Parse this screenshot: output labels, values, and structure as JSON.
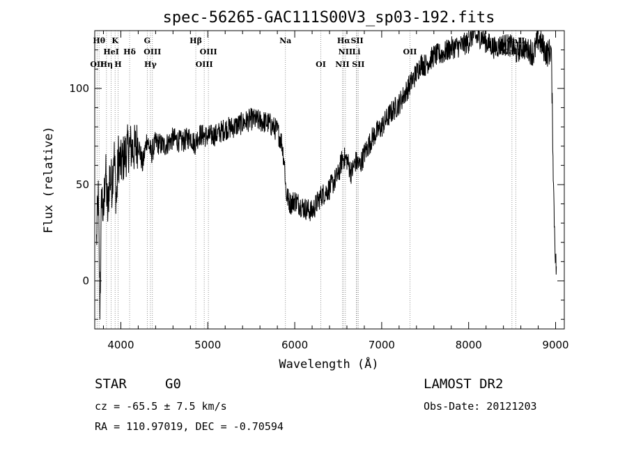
{
  "chart_data": {
    "type": "line",
    "title": "spec-56265-GAC111S00V3_sp03-192.fits",
    "xlabel": "Wavelength (Å)",
    "ylabel": "Flux (relative)",
    "xlim": [
      3700,
      9100
    ],
    "ylim": [
      -25,
      130
    ],
    "xticks": [
      4000,
      5000,
      6000,
      7000,
      8000,
      9000
    ],
    "yticks": [
      0,
      50,
      100
    ],
    "grid": false,
    "series": [
      {
        "color": "#000000",
        "x": [
          3720,
          3740,
          3760,
          3780,
          3800,
          3820,
          3850,
          3870,
          3900,
          3920,
          3950,
          3970,
          4000,
          4050,
          4100,
          4150,
          4200,
          4250,
          4300,
          4350,
          4400,
          4500,
          4600,
          4700,
          4800,
          4850,
          4900,
          5000,
          5100,
          5200,
          5300,
          5400,
          5500,
          5600,
          5700,
          5800,
          5850,
          5880,
          5890,
          5900,
          5950,
          6000,
          6100,
          6200,
          6250,
          6300,
          6400,
          6500,
          6550,
          6600,
          6650,
          6700,
          6750,
          6800,
          6900,
          7000,
          7100,
          7200,
          7300,
          7400,
          7450,
          7500,
          7600,
          7700,
          7800,
          7900,
          8000,
          8050,
          8100,
          8150,
          8200,
          8300,
          8400,
          8500,
          8550,
          8600,
          8700,
          8750,
          8800,
          8850,
          8900,
          8950,
          8980,
          9000,
          9010
        ],
        "y": [
          20,
          45,
          -15,
          48,
          30,
          60,
          35,
          55,
          50,
          68,
          40,
          65,
          60,
          66,
          70,
          68,
          72,
          60,
          74,
          66,
          72,
          70,
          74,
          72,
          75,
          71,
          76,
          75,
          76,
          79,
          80,
          82,
          84,
          83,
          82,
          78,
          72,
          62,
          55,
          45,
          40,
          42,
          38,
          36,
          40,
          44,
          48,
          55,
          64,
          63,
          56,
          62,
          60,
          66,
          75,
          80,
          87,
          92,
          100,
          108,
          113,
          112,
          117,
          118,
          121,
          122,
          124,
          128,
          126,
          127,
          124,
          121,
          123,
          122,
          118,
          121,
          120,
          118,
          126,
          122,
          118,
          120,
          40,
          10,
          5
        ],
        "noise": 6
      }
    ],
    "annotations": [
      {
        "row": 0,
        "items": [
          {
            "text": "Hθ",
            "x": 3750
          },
          {
            "text": "K",
            "x": 3934
          },
          {
            "text": "G",
            "x": 4304
          },
          {
            "text": "Hβ",
            "x": 4862
          },
          {
            "text": "Na",
            "x": 5893
          },
          {
            "text": "Hα",
            "x": 6563
          },
          {
            "text": "SII",
            "x": 6717
          },
          {
            "text": "CaII",
            "x": 8542
          }
        ]
      },
      {
        "row": 1,
        "items": [
          {
            "text": "HeI",
            "x": 3889
          },
          {
            "text": "Hδ",
            "x": 4101
          },
          {
            "text": "OIII",
            "x": 4363
          },
          {
            "text": "OIII",
            "x": 5007
          },
          {
            "text": "NII",
            "x": 6583
          },
          {
            "text": "Li",
            "x": 6708
          },
          {
            "text": "OII",
            "x": 7325
          },
          {
            "text": "CaII",
            "x": 8498
          }
        ]
      },
      {
        "row": 2,
        "items": [
          {
            "text": "OII",
            "x": 3727
          },
          {
            "text": "Hη",
            "x": 3835
          },
          {
            "text": "H",
            "x": 3968
          },
          {
            "text": "Hγ",
            "x": 4340
          },
          {
            "text": "OIII",
            "x": 4959
          },
          {
            "text": "OI",
            "x": 6300
          },
          {
            "text": "NII",
            "x": 6548
          },
          {
            "text": "SII",
            "x": 6731
          }
        ]
      }
    ],
    "marker_lines": [
      3727,
      3750,
      3835,
      3889,
      3934,
      3968,
      4101,
      4304,
      4340,
      4363,
      4862,
      4959,
      5007,
      5893,
      6300,
      6548,
      6563,
      6583,
      6708,
      6717,
      6731,
      7325,
      8498,
      8542
    ]
  },
  "footer": {
    "object_class": "STAR",
    "subclass": "G0",
    "survey": "LAMOST DR2",
    "redshift_line": "cz = -65.5 ± 7.5 km/s",
    "obs_date_line": "Obs-Date: 20121203",
    "coords_line": "RA = 110.97019, DEC =  -0.70594"
  }
}
